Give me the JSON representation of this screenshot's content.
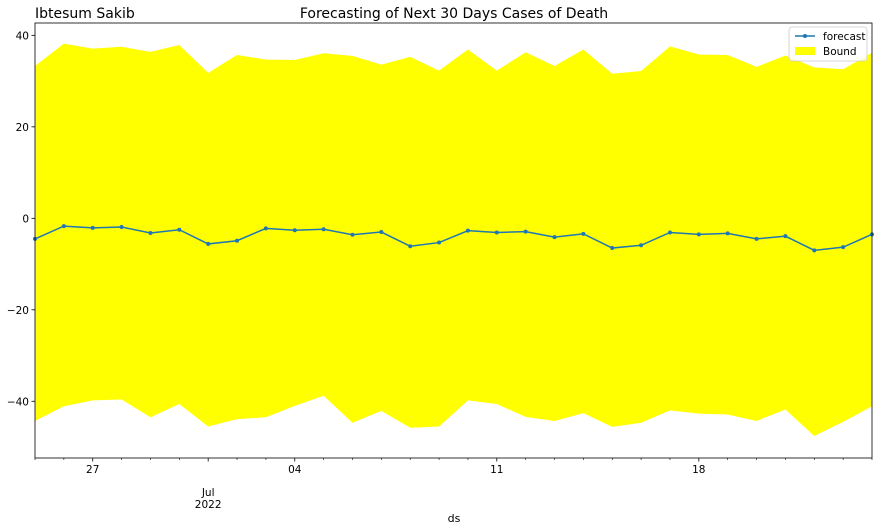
{
  "author": "Ibtesum Sakib",
  "chart_data": {
    "type": "line",
    "title": "Forecasting of Next 30 Days Cases of Death",
    "xlabel": "ds",
    "ylabel": "",
    "x_start": "2022-06-25",
    "x": [
      "2022-06-25",
      "2022-06-26",
      "2022-06-27",
      "2022-06-28",
      "2022-06-29",
      "2022-06-30",
      "2022-07-01",
      "2022-07-02",
      "2022-07-03",
      "2022-07-04",
      "2022-07-05",
      "2022-07-06",
      "2022-07-07",
      "2022-07-08",
      "2022-07-09",
      "2022-07-10",
      "2022-07-11",
      "2022-07-12",
      "2022-07-13",
      "2022-07-14",
      "2022-07-15",
      "2022-07-16",
      "2022-07-17",
      "2022-07-18",
      "2022-07-19",
      "2022-07-20",
      "2022-07-21",
      "2022-07-22",
      "2022-07-23",
      "2022-07-24"
    ],
    "xlim": [
      "2022-06-25",
      "2022-07-24"
    ],
    "ylim": [
      -52.4,
      42.7
    ],
    "yticks": [
      40,
      20,
      0,
      -20,
      -40
    ],
    "ytick_labels": [
      "40",
      "20",
      "0",
      "−20",
      "−40"
    ],
    "xticks": [
      {
        "date": "2022-06-27",
        "label": "27",
        "sub": []
      },
      {
        "date": "2022-07-01",
        "label": "",
        "sub": [
          "Jul",
          "2022"
        ]
      },
      {
        "date": "2022-07-04",
        "label": "04",
        "sub": []
      },
      {
        "date": "2022-07-11",
        "label": "11",
        "sub": []
      },
      {
        "date": "2022-07-18",
        "label": "18",
        "sub": []
      }
    ],
    "series": [
      {
        "name": "forecast",
        "color": "#1f77b4",
        "marker": "dot",
        "values": [
          -4.5,
          -1.7,
          -2.1,
          -1.9,
          -3.2,
          -2.5,
          -5.6,
          -4.9,
          -2.2,
          -2.6,
          -2.4,
          -3.6,
          -3.0,
          -6.1,
          -5.3,
          -2.7,
          -3.1,
          -2.9,
          -4.1,
          -3.4,
          -6.5,
          -5.9,
          -3.1,
          -3.5,
          -3.3,
          -4.5,
          -3.9,
          -7.0,
          -6.3,
          -3.5
        ]
      }
    ],
    "bounds": {
      "name": "Bound",
      "color": "#ffff00",
      "upper": [
        33.3,
        38.2,
        37.1,
        37.5,
        36.4,
        37.9,
        31.8,
        35.7,
        34.7,
        34.6,
        36.1,
        35.5,
        33.6,
        35.3,
        32.3,
        36.9,
        32.3,
        36.3,
        33.3,
        36.9,
        31.6,
        32.2,
        37.6,
        35.8,
        35.7,
        33.1,
        35.6,
        33.0,
        32.6,
        36.2
      ],
      "lower": [
        -44.3,
        -41.1,
        -39.8,
        -39.6,
        -43.5,
        -40.6,
        -45.5,
        -43.9,
        -43.5,
        -41.0,
        -38.8,
        -44.7,
        -42.1,
        -45.8,
        -45.5,
        -39.8,
        -40.6,
        -43.4,
        -44.3,
        -42.6,
        -45.6,
        -44.7,
        -42.0,
        -42.7,
        -42.9,
        -44.3,
        -41.8,
        -47.6,
        -44.5,
        -41.1
      ]
    },
    "legend": {
      "position": "top-right",
      "entries": [
        "forecast",
        "Bound"
      ]
    },
    "grid": false
  }
}
